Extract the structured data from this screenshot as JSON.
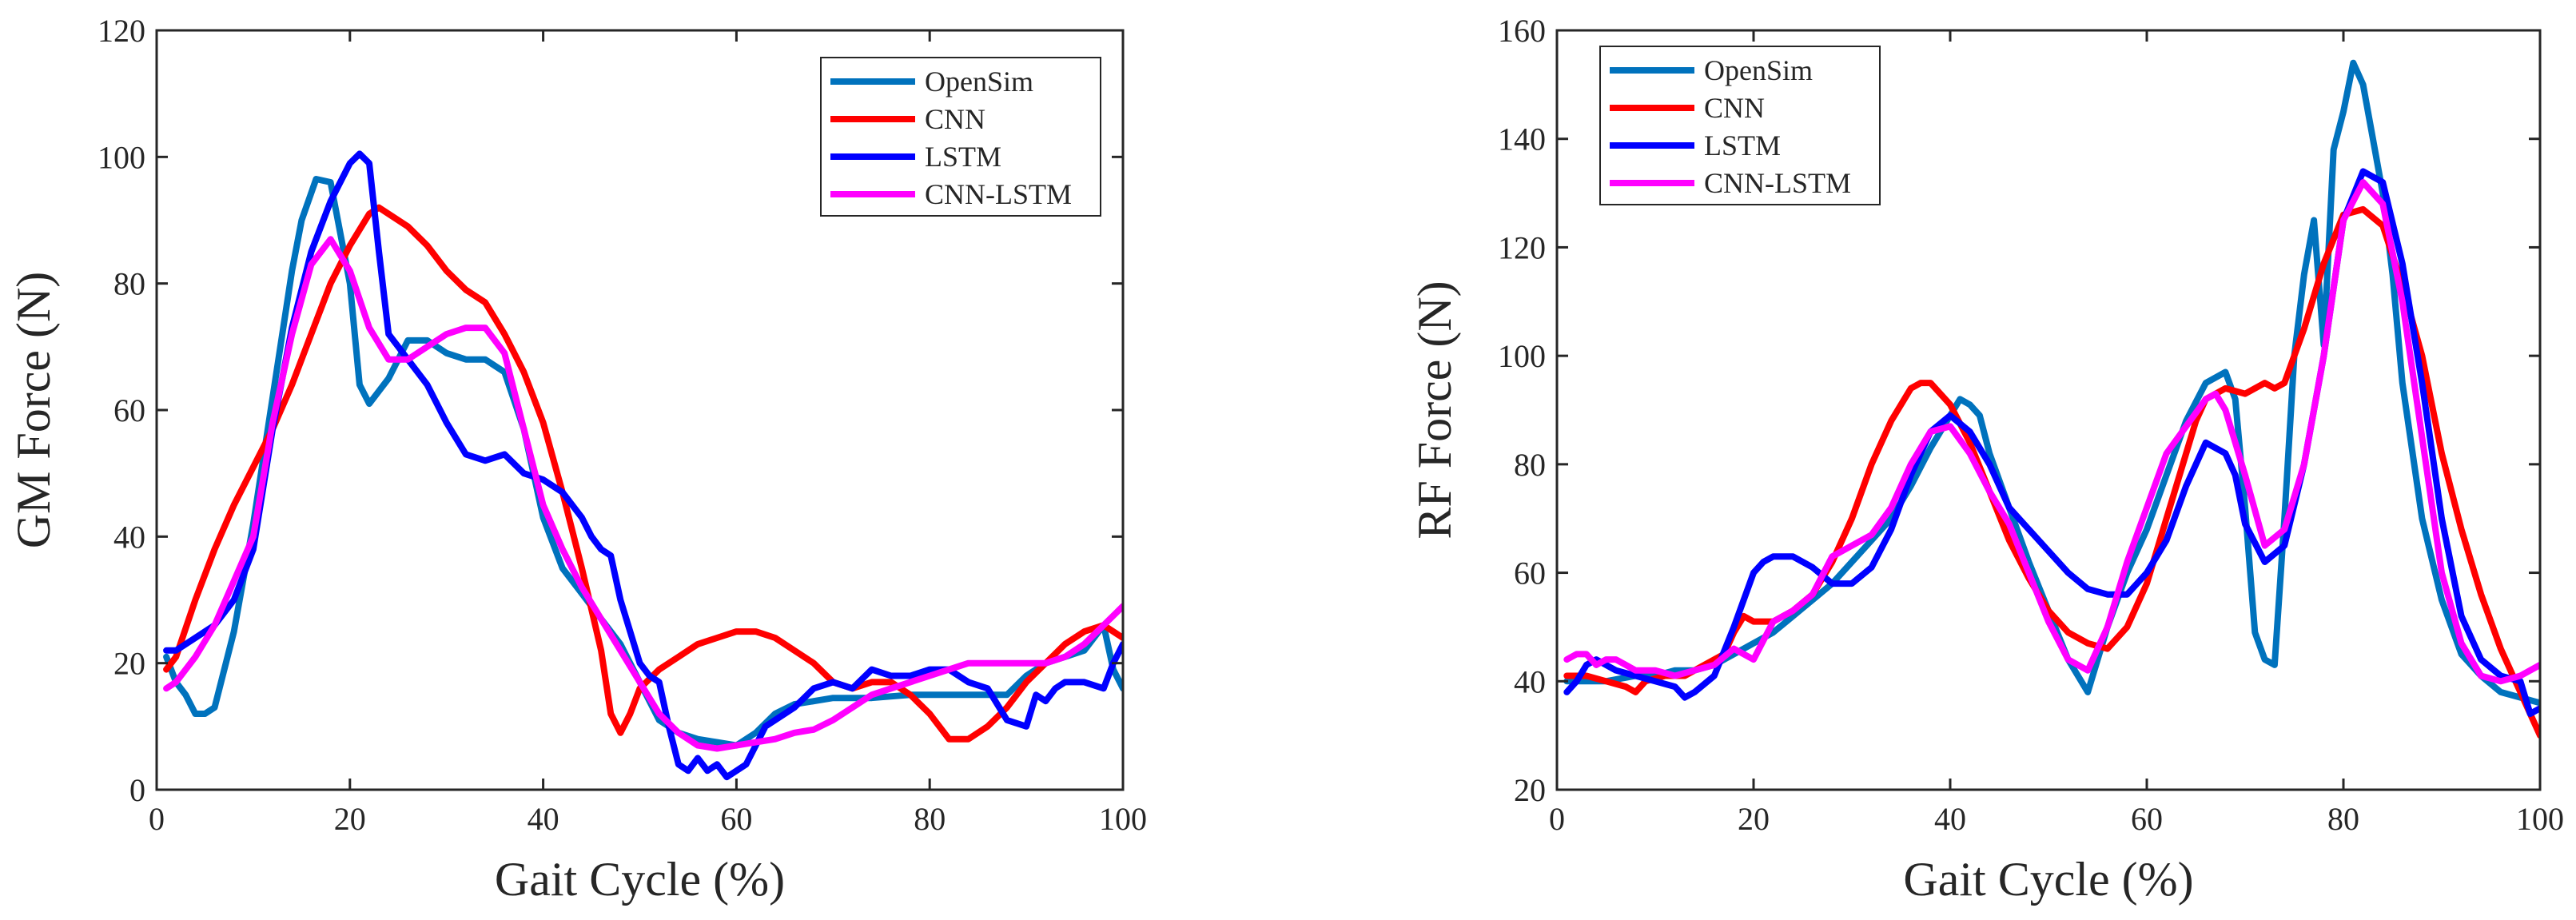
{
  "chart_data": [
    {
      "type": "line",
      "title": "",
      "xlabel": "Gait Cycle (%)",
      "ylabel": "GM Force (N)",
      "xlim": [
        0,
        100
      ],
      "ylim": [
        0,
        120
      ],
      "xticks": [
        0,
        20,
        40,
        60,
        80,
        100
      ],
      "yticks": [
        0,
        20,
        40,
        60,
        80,
        100,
        120
      ],
      "grid": false,
      "legend_position": "top-right",
      "series": [
        {
          "name": "OpenSim",
          "color": "#0072BD",
          "x": [
            1,
            2,
            3,
            4,
            5,
            6,
            8,
            10,
            12,
            14,
            15,
            16.5,
            18,
            20,
            21,
            22,
            24,
            26,
            28,
            30,
            32,
            34,
            35,
            36,
            38,
            40,
            42,
            44,
            46,
            48,
            50,
            52,
            54,
            56,
            58,
            60,
            62,
            64,
            66,
            68,
            70,
            74,
            78,
            82,
            86,
            88,
            90,
            92,
            94,
            96,
            98,
            99,
            100
          ],
          "y": [
            21,
            17,
            15,
            12,
            12,
            13,
            25,
            42,
            62,
            82,
            90,
            96.5,
            96,
            80,
            64,
            61,
            65,
            71,
            71,
            69,
            68,
            68,
            67,
            66,
            57,
            43,
            35,
            31,
            27,
            23,
            17,
            11,
            9,
            8,
            7.5,
            7,
            9,
            12,
            13.5,
            14,
            14.5,
            14.5,
            15,
            15,
            15,
            15,
            18,
            20,
            21,
            22,
            26,
            19,
            16
          ]
        },
        {
          "name": "CNN",
          "color": "#FF0000",
          "x": [
            1,
            2,
            4,
            6,
            8,
            10,
            12,
            14,
            16,
            18,
            20,
            22,
            23,
            24,
            26,
            28,
            30,
            32,
            34,
            36,
            38,
            40,
            42,
            44,
            46,
            47,
            48,
            49,
            50,
            52,
            54,
            56,
            58,
            60,
            62,
            64,
            66,
            68,
            70,
            72,
            74,
            76,
            78,
            80,
            82,
            84,
            86,
            88,
            90,
            92,
            94,
            96,
            98,
            100
          ],
          "y": [
            19,
            21,
            30,
            38,
            45,
            51,
            57,
            64,
            72,
            80,
            86,
            91,
            92,
            91,
            89,
            86,
            82,
            79,
            77,
            72,
            66,
            58,
            47,
            35,
            22,
            12,
            9,
            12,
            16,
            19,
            21,
            23,
            24,
            25,
            25,
            24,
            22,
            20,
            17,
            16,
            17,
            17,
            15,
            12,
            8,
            8,
            10,
            13,
            17,
            20,
            23,
            25,
            26,
            24
          ]
        },
        {
          "name": "LSTM",
          "color": "#0000FF",
          "x": [
            1,
            2,
            4,
            6,
            8,
            10,
            12,
            14,
            16,
            18,
            20,
            21,
            22,
            23,
            24,
            25,
            26,
            28,
            30,
            32,
            34,
            36,
            38,
            40,
            42,
            44,
            45,
            46,
            47,
            48,
            49,
            50,
            51,
            52,
            53,
            54,
            55,
            56,
            57,
            58,
            59,
            60,
            61,
            62,
            63,
            64,
            66,
            68,
            70,
            72,
            74,
            76,
            78,
            80,
            82,
            84,
            86,
            88,
            90,
            91,
            92,
            93,
            94,
            96,
            98,
            99,
            100
          ],
          "y": [
            22,
            22,
            24,
            26,
            30,
            38,
            57,
            73,
            85,
            93,
            99,
            100.5,
            99,
            85,
            72,
            70,
            68,
            64,
            58,
            53,
            52,
            53,
            50,
            49,
            47,
            43,
            40,
            38,
            37,
            30,
            25,
            20,
            18,
            17,
            10,
            4,
            3,
            5,
            3,
            4,
            2,
            3,
            4,
            7,
            10,
            11,
            13,
            16,
            17,
            16,
            19,
            18,
            18,
            19,
            19,
            17,
            16,
            11,
            10,
            15,
            14,
            16,
            17,
            17,
            16,
            20,
            23
          ]
        },
        {
          "name": "CNN-LSTM",
          "color": "#FF00FF",
          "x": [
            1,
            2,
            4,
            6,
            8,
            10,
            12,
            14,
            16,
            18,
            20,
            22,
            24,
            26,
            28,
            30,
            32,
            34,
            36,
            38,
            40,
            42,
            44,
            46,
            48,
            50,
            52,
            54,
            56,
            58,
            60,
            62,
            64,
            66,
            68,
            70,
            72,
            74,
            76,
            78,
            80,
            82,
            84,
            86,
            88,
            90,
            92,
            94,
            96,
            98,
            100
          ],
          "y": [
            16,
            17,
            21,
            26,
            33,
            40,
            58,
            72,
            83,
            87,
            82,
            73,
            68,
            68,
            70,
            72,
            73,
            73,
            69,
            57,
            45,
            38,
            32,
            27,
            22,
            17,
            12,
            9,
            7,
            6.5,
            7,
            7.5,
            8,
            9,
            9.5,
            11,
            13,
            15,
            16,
            17,
            18,
            19,
            20,
            20,
            20,
            20,
            20,
            21,
            23,
            26,
            29
          ]
        }
      ]
    },
    {
      "type": "line",
      "title": "",
      "xlabel": "Gait Cycle (%)",
      "ylabel": "RF Force (N)",
      "xlim": [
        0,
        100
      ],
      "ylim": [
        20,
        160
      ],
      "xticks": [
        0,
        20,
        40,
        60,
        80,
        100
      ],
      "yticks": [
        20,
        40,
        60,
        80,
        100,
        120,
        140,
        160
      ],
      "grid": false,
      "legend_position": "top-left",
      "series": [
        {
          "name": "OpenSim",
          "color": "#0072BD",
          "x": [
            1,
            3,
            5,
            8,
            10,
            12,
            14,
            16,
            18,
            20,
            22,
            24,
            26,
            28,
            30,
            32,
            34,
            36,
            38,
            40,
            41,
            42,
            43,
            44,
            46,
            48,
            50,
            52,
            54,
            56,
            58,
            60,
            62,
            64,
            66,
            68,
            69,
            70,
            71,
            72,
            73,
            74,
            75,
            76,
            77,
            78,
            79,
            80,
            81,
            82,
            83,
            84,
            85,
            86,
            88,
            90,
            92,
            94,
            96,
            98,
            100
          ],
          "y": [
            40,
            40,
            40,
            41,
            41,
            42,
            42,
            43,
            45,
            47,
            49,
            52,
            55,
            58,
            62,
            66,
            70,
            76,
            83,
            89,
            92,
            91,
            89,
            82,
            72,
            62,
            53,
            44,
            38,
            50,
            60,
            68,
            78,
            88,
            95,
            97,
            92,
            72,
            49,
            44,
            43,
            70,
            100,
            115,
            125,
            102,
            138,
            145,
            154,
            150,
            140,
            130,
            115,
            95,
            70,
            55,
            45,
            41,
            38,
            37,
            36
          ]
        },
        {
          "name": "CNN",
          "color": "#FF0000",
          "x": [
            1,
            3,
            5,
            7,
            8,
            9,
            11,
            13,
            15,
            17,
            18,
            19,
            20,
            22,
            24,
            26,
            28,
            30,
            32,
            34,
            36,
            37,
            38,
            40,
            42,
            44,
            46,
            48,
            50,
            52,
            54,
            56,
            58,
            60,
            62,
            64,
            65,
            66,
            68,
            70,
            72,
            73,
            74,
            76,
            78,
            80,
            82,
            84,
            86,
            88,
            90,
            92,
            94,
            96,
            98,
            100
          ],
          "y": [
            41,
            41,
            40,
            39,
            38,
            40,
            41,
            41,
            43,
            45,
            49,
            52,
            51,
            51,
            53,
            56,
            62,
            70,
            80,
            88,
            94,
            95,
            95,
            91,
            84,
            75,
            66,
            59,
            53,
            49,
            47,
            46,
            50,
            58,
            70,
            82,
            88,
            92,
            94,
            93,
            95,
            94,
            95,
            105,
            117,
            126,
            127,
            124,
            113,
            100,
            82,
            68,
            56,
            46,
            38,
            30
          ]
        },
        {
          "name": "LSTM",
          "color": "#0000FF",
          "x": [
            1,
            2,
            3,
            4,
            6,
            8,
            10,
            12,
            13,
            14,
            16,
            18,
            20,
            21,
            22,
            24,
            26,
            28,
            30,
            32,
            34,
            36,
            38,
            40,
            42,
            44,
            46,
            48,
            50,
            52,
            54,
            56,
            58,
            60,
            62,
            64,
            66,
            68,
            69,
            70,
            72,
            74,
            76,
            78,
            80,
            82,
            84,
            86,
            88,
            90,
            92,
            94,
            96,
            98,
            99,
            100
          ],
          "y": [
            38,
            40,
            43,
            44,
            42,
            41,
            40,
            39,
            37,
            38,
            41,
            50,
            60,
            62,
            63,
            63,
            61,
            58,
            58,
            61,
            68,
            78,
            86,
            89,
            86,
            80,
            72,
            68,
            64,
            60,
            57,
            56,
            56,
            60,
            66,
            76,
            84,
            82,
            78,
            69,
            62,
            65,
            80,
            100,
            125,
            134,
            132,
            117,
            95,
            70,
            52,
            44,
            41,
            40,
            34,
            35
          ]
        },
        {
          "name": "CNN-LSTM",
          "color": "#FF00FF",
          "x": [
            1,
            2,
            3,
            4,
            5,
            6,
            7,
            8,
            10,
            12,
            14,
            16,
            18,
            20,
            22,
            24,
            26,
            28,
            30,
            32,
            34,
            36,
            38,
            40,
            42,
            44,
            46,
            48,
            50,
            52,
            54,
            56,
            58,
            60,
            62,
            64,
            66,
            67,
            68,
            70,
            72,
            74,
            76,
            78,
            80,
            82,
            84,
            86,
            88,
            90,
            92,
            94,
            96,
            98,
            100
          ],
          "y": [
            44,
            45,
            45,
            43,
            44,
            44,
            43,
            42,
            42,
            41,
            42,
            43,
            46,
            44,
            51,
            53,
            56,
            63,
            65,
            67,
            72,
            80,
            86,
            87,
            82,
            75,
            69,
            60,
            51,
            44,
            42,
            50,
            62,
            72,
            82,
            87,
            92,
            93,
            90,
            78,
            65,
            68,
            80,
            100,
            125,
            132,
            128,
            110,
            85,
            60,
            47,
            41,
            40,
            41,
            43
          ]
        }
      ]
    }
  ]
}
